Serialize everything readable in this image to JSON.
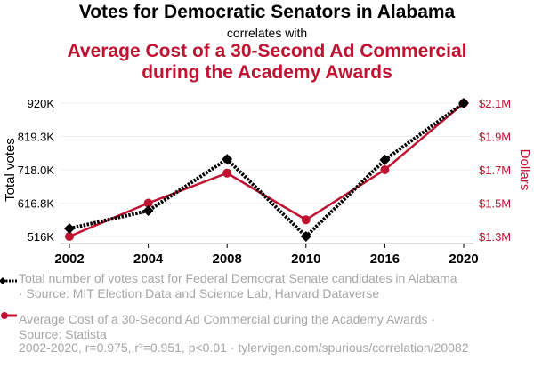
{
  "header": {
    "title_top": "Votes for Democratic Senators in Alabama",
    "connector": "correlates with",
    "title_bottom_line1": "Average Cost of a 30-Second Ad Commercial",
    "title_bottom_line2": "during the Academy Awards"
  },
  "legend": {
    "series1_line1": "Total number of votes cast for Federal Democrat Senate candidates in Alabama",
    "series1_line2": "· Source: MIT Election Data and Science Lab, Harvard Dataverse",
    "series2_line1": "Average Cost of a 30-Second Ad Commercial during the Academy Awards ·",
    "series2_line2": "Source: Statista"
  },
  "footer": "2002-2020, r=0.975, r²=0.951, p<0.01 · tylervigen.com/spurious/correlation/20082",
  "colors": {
    "votes": "#000000",
    "cost": "#c01331",
    "grid": "#eeeeee",
    "axis": "#bbbbbb",
    "legend_text": "#a6a6a6"
  },
  "chart_data": {
    "type": "line",
    "title": "Votes for Democratic Senators in Alabama correlates with Average Cost of a 30-Second Ad Commercial during the Academy Awards",
    "categories": [
      "2002",
      "2004",
      "2008",
      "2010",
      "2016",
      "2020"
    ],
    "xlabel": "",
    "ylabel_left": "Total votes",
    "ylabel_right": "Dollars",
    "ylim_left": [
      516000,
      920000
    ],
    "ylim_right": [
      1300000,
      2100000
    ],
    "yticks_left": [
      "516K",
      "616.8K",
      "718.0K",
      "819.3K",
      "920K"
    ],
    "yticks_left_values": [
      516000,
      616800,
      718000,
      819300,
      920000
    ],
    "yticks_right": [
      "$1.3M",
      "$1.5M",
      "$1.7M",
      "$1.9M",
      "$2.1M"
    ],
    "yticks_right_values": [
      1300000,
      1500000,
      1700000,
      1900000,
      2100000
    ],
    "grid": true,
    "legend_position": "bottom",
    "series": [
      {
        "name": "Total number of votes cast for Federal Democrat Senate candidates in Alabama",
        "axis": "left",
        "style": "dotted",
        "marker": "diamond",
        "values": [
          540000,
          594000,
          750000,
          516000,
          748000,
          920000
        ]
      },
      {
        "name": "Average Cost of a 30-Second Ad Commercial during the Academy Awards",
        "axis": "right",
        "style": "solid",
        "marker": "circle",
        "values": [
          1300000,
          1500000,
          1680000,
          1400000,
          1700000,
          2100000
        ]
      }
    ]
  }
}
